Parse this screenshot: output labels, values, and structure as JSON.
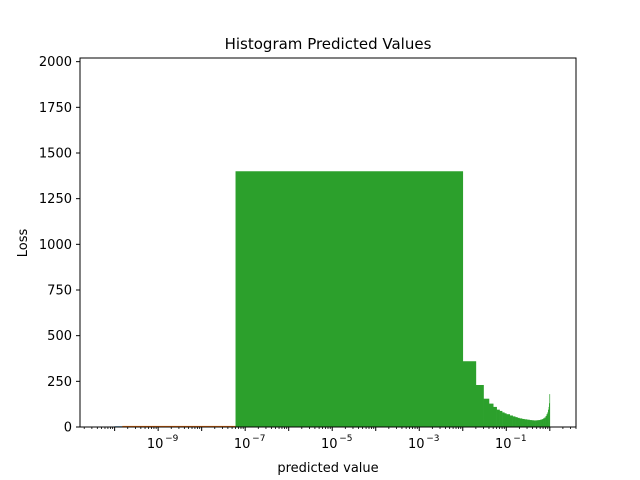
{
  "chart_data": {
    "type": "bar",
    "title": "Histogram Predicted Values",
    "xlabel": "predicted value",
    "ylabel": "Loss",
    "x_scale": "log",
    "xlim": [
      1.6e-11,
      4.0
    ],
    "ylim": [
      0,
      2020
    ],
    "grid": false,
    "y_ticks": [
      0,
      250,
      500,
      750,
      1000,
      1250,
      1500,
      1750,
      2000
    ],
    "x_ticks": [
      {
        "value": 1e-09,
        "base": "10",
        "exp": "−9"
      },
      {
        "value": 1e-07,
        "base": "10",
        "exp": "−7"
      },
      {
        "value": 1e-05,
        "base": "10",
        "exp": "−5"
      },
      {
        "value": 0.001,
        "base": "10",
        "exp": "−3"
      },
      {
        "value": 0.1,
        "base": "10",
        "exp": "−1"
      }
    ],
    "series": [
      {
        "color": "#1f77b4",
        "bins": [
          {
            "x0": 1e-10,
            "x1": 2e-10,
            "y": 4
          }
        ]
      },
      {
        "color": "#ff7f0e",
        "bins": [
          {
            "x0": 1.5e-10,
            "x1": 0.01,
            "y": 6
          }
        ]
      },
      {
        "color": "#d62728",
        "bins": [
          {
            "x0": 1.5e-10,
            "x1": 0.01,
            "y": 3
          }
        ]
      },
      {
        "color": "#2ca02c",
        "bins": [
          {
            "x0": 6e-08,
            "x1": 0.01,
            "y": 1400
          },
          {
            "x0": 0.01,
            "x1": 0.02,
            "y": 360
          },
          {
            "x0": 0.02,
            "x1": 0.03,
            "y": 230
          },
          {
            "x0": 0.03,
            "x1": 0.04,
            "y": 155
          },
          {
            "x0": 0.04,
            "x1": 0.05,
            "y": 128
          },
          {
            "x0": 0.05,
            "x1": 0.06,
            "y": 110
          },
          {
            "x0": 0.06,
            "x1": 0.07,
            "y": 95
          },
          {
            "x0": 0.07,
            "x1": 0.08,
            "y": 88
          },
          {
            "x0": 0.08,
            "x1": 0.09,
            "y": 80
          },
          {
            "x0": 0.09,
            "x1": 0.1,
            "y": 75
          },
          {
            "x0": 0.1,
            "x1": 0.12,
            "y": 70
          },
          {
            "x0": 0.12,
            "x1": 0.14,
            "y": 63
          },
          {
            "x0": 0.14,
            "x1": 0.16,
            "y": 58
          },
          {
            "x0": 0.16,
            "x1": 0.18,
            "y": 54
          },
          {
            "x0": 0.18,
            "x1": 0.2,
            "y": 50
          },
          {
            "x0": 0.2,
            "x1": 0.23,
            "y": 47
          },
          {
            "x0": 0.23,
            "x1": 0.26,
            "y": 44
          },
          {
            "x0": 0.26,
            "x1": 0.3,
            "y": 42
          },
          {
            "x0": 0.3,
            "x1": 0.34,
            "y": 40
          },
          {
            "x0": 0.34,
            "x1": 0.38,
            "y": 38
          },
          {
            "x0": 0.38,
            "x1": 0.42,
            "y": 37
          },
          {
            "x0": 0.42,
            "x1": 0.46,
            "y": 36
          },
          {
            "x0": 0.46,
            "x1": 0.5,
            "y": 36
          },
          {
            "x0": 0.5,
            "x1": 0.55,
            "y": 37
          },
          {
            "x0": 0.55,
            "x1": 0.6,
            "y": 38
          },
          {
            "x0": 0.6,
            "x1": 0.65,
            "y": 40
          },
          {
            "x0": 0.65,
            "x1": 0.7,
            "y": 43
          },
          {
            "x0": 0.7,
            "x1": 0.75,
            "y": 47
          },
          {
            "x0": 0.75,
            "x1": 0.8,
            "y": 52
          },
          {
            "x0": 0.8,
            "x1": 0.84,
            "y": 60
          },
          {
            "x0": 0.84,
            "x1": 0.88,
            "y": 70
          },
          {
            "x0": 0.88,
            "x1": 0.91,
            "y": 80
          },
          {
            "x0": 0.91,
            "x1": 0.94,
            "y": 95
          },
          {
            "x0": 0.94,
            "x1": 0.96,
            "y": 110
          },
          {
            "x0": 0.96,
            "x1": 0.98,
            "y": 130
          },
          {
            "x0": 0.98,
            "x1": 1.0,
            "y": 180
          }
        ]
      }
    ]
  }
}
